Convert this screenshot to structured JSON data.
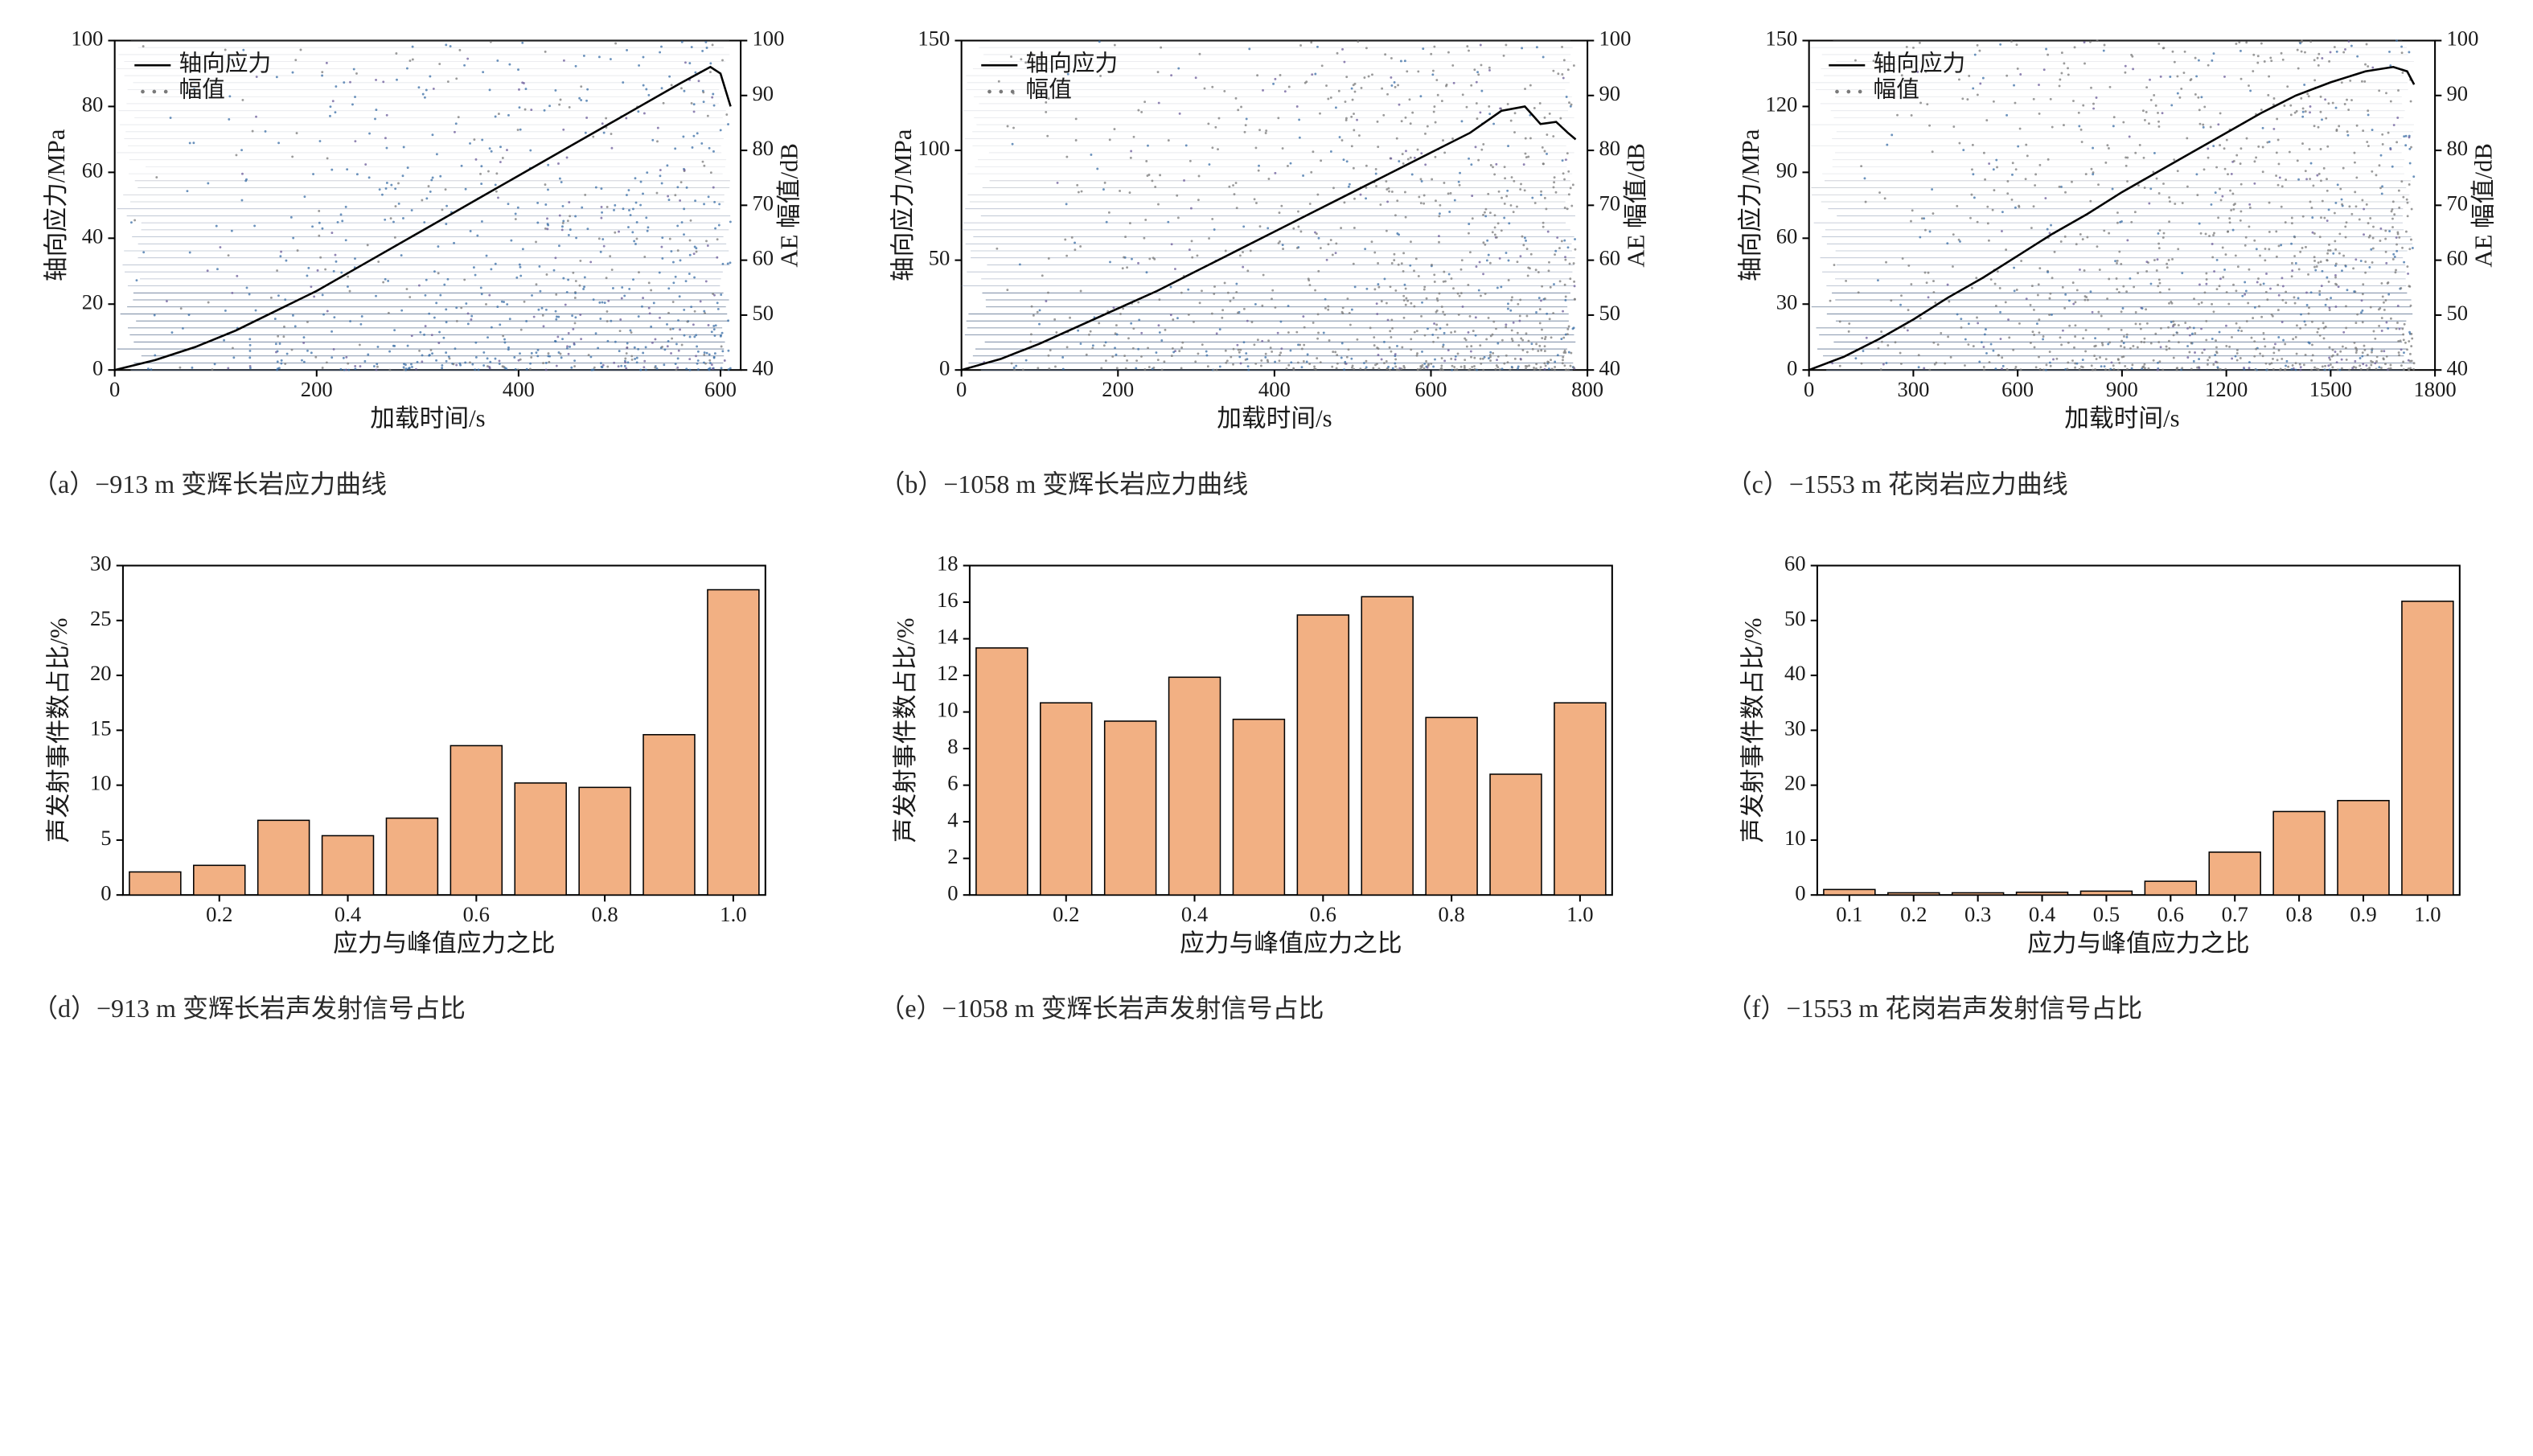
{
  "colors": {
    "bg": "#ffffff",
    "axis": "#000000",
    "text": "#1a1a1a",
    "bar_fill": "#f2b083",
    "bar_stroke": "#000000",
    "stress_line": "#000000",
    "hstripe": "#556b8a",
    "scatter_blue": "#3a6ea5",
    "scatter_gray": "#7a7a7a",
    "scatter_purple": "#6b5b9a"
  },
  "typography": {
    "tick_pt": 26,
    "axis_title_pt": 30,
    "caption_pt": 32,
    "legend_pt": 28
  },
  "top_common": {
    "y1_label": "轴向应力/MPa",
    "y2_label": "AE 幅值/dB",
    "x_label": "加载时间/s",
    "legend_line": "轴向应力",
    "legend_pts": "幅值",
    "y2_lim": [
      40,
      100
    ],
    "y2_ticks": [
      40,
      50,
      60,
      70,
      80,
      90,
      100
    ]
  },
  "top_a": {
    "caption": "（a）−913 m 变辉长岩应力曲线",
    "xlim": [
      0,
      620
    ],
    "xticks": [
      0,
      200,
      400,
      600
    ],
    "y1_lim": [
      0,
      100
    ],
    "y1_ticks": [
      0,
      20,
      40,
      60,
      80,
      100
    ],
    "stress_curve": [
      [
        0,
        0
      ],
      [
        40,
        3
      ],
      [
        80,
        7
      ],
      [
        120,
        12
      ],
      [
        160,
        18
      ],
      [
        200,
        24
      ],
      [
        240,
        31
      ],
      [
        280,
        38
      ],
      [
        320,
        45
      ],
      [
        360,
        52
      ],
      [
        400,
        59
      ],
      [
        440,
        66
      ],
      [
        480,
        73
      ],
      [
        520,
        80
      ],
      [
        560,
        87
      ],
      [
        590,
        92
      ],
      [
        600,
        90
      ],
      [
        610,
        80
      ]
    ],
    "scatter_n": 900,
    "scatter_color_mix": [
      0.6,
      0.25,
      0.15
    ]
  },
  "top_b": {
    "caption": "（b）−1058  m 变辉长岩应力曲线",
    "xlim": [
      0,
      800
    ],
    "xticks": [
      0,
      200,
      400,
      600,
      800
    ],
    "y1_lim": [
      0,
      150
    ],
    "y1_ticks": [
      0,
      50,
      100,
      150
    ],
    "stress_curve": [
      [
        0,
        0
      ],
      [
        50,
        5
      ],
      [
        100,
        12
      ],
      [
        150,
        20
      ],
      [
        200,
        28
      ],
      [
        250,
        36
      ],
      [
        300,
        45
      ],
      [
        350,
        54
      ],
      [
        400,
        63
      ],
      [
        450,
        72
      ],
      [
        500,
        81
      ],
      [
        550,
        90
      ],
      [
        600,
        99
      ],
      [
        650,
        108
      ],
      [
        690,
        118
      ],
      [
        720,
        120
      ],
      [
        740,
        112
      ],
      [
        760,
        113
      ],
      [
        775,
        108
      ],
      [
        785,
        105
      ]
    ],
    "scatter_n": 1100,
    "scatter_color_mix": [
      0.2,
      0.7,
      0.1
    ]
  },
  "top_c": {
    "caption": "（c）−1553 m 花岗岩应力曲线",
    "xlim": [
      0,
      1800
    ],
    "xticks": [
      0,
      300,
      600,
      900,
      1200,
      1500,
      1800
    ],
    "y1_lim": [
      0,
      150
    ],
    "y1_ticks": [
      0,
      30,
      60,
      90,
      120,
      150
    ],
    "stress_curve": [
      [
        0,
        0
      ],
      [
        100,
        6
      ],
      [
        200,
        14
      ],
      [
        300,
        23
      ],
      [
        400,
        33
      ],
      [
        500,
        42
      ],
      [
        600,
        52
      ],
      [
        700,
        62
      ],
      [
        800,
        71
      ],
      [
        900,
        81
      ],
      [
        1000,
        90
      ],
      [
        1100,
        99
      ],
      [
        1200,
        108
      ],
      [
        1300,
        117
      ],
      [
        1400,
        125
      ],
      [
        1500,
        131
      ],
      [
        1600,
        136
      ],
      [
        1680,
        138
      ],
      [
        1720,
        136
      ],
      [
        1740,
        130
      ]
    ],
    "scatter_n": 1300,
    "scatter_color_mix": [
      0.15,
      0.75,
      0.1
    ]
  },
  "bottom_common": {
    "y_label": "声发射事件数占比/%",
    "x_label": "应力与峰值应力之比",
    "categories": [
      0.1,
      0.2,
      0.3,
      0.4,
      0.5,
      0.6,
      0.7,
      0.8,
      0.9,
      1.0
    ],
    "bar_width": 0.8
  },
  "bottom_d": {
    "caption": "（d）−913 m 变辉长岩声发射信号占比",
    "ylim": [
      0,
      30
    ],
    "yticks": [
      0,
      5,
      10,
      15,
      20,
      25,
      30
    ],
    "values": [
      2.1,
      2.7,
      6.8,
      5.4,
      7.0,
      13.6,
      10.2,
      9.8,
      14.6,
      27.8
    ],
    "xticks_show": [
      0.2,
      0.4,
      0.6,
      0.8,
      1.0
    ]
  },
  "bottom_e": {
    "caption": "（e）−1058  m 变辉长岩声发射信号占比",
    "ylim": [
      0,
      18
    ],
    "yticks": [
      0,
      2,
      4,
      6,
      8,
      10,
      12,
      14,
      16,
      18
    ],
    "values": [
      13.5,
      10.5,
      9.5,
      11.9,
      9.6,
      15.3,
      16.3,
      9.7,
      6.6,
      10.5
    ],
    "xticks_show": [
      0.2,
      0.4,
      0.6,
      0.8,
      1.0
    ]
  },
  "bottom_f": {
    "caption": "（f）−1553 m 花岗岩声发射信号占比",
    "ylim": [
      0,
      60
    ],
    "yticks": [
      0,
      10,
      20,
      30,
      40,
      50,
      60
    ],
    "values": [
      1.0,
      0.4,
      0.4,
      0.5,
      0.7,
      2.5,
      7.8,
      15.2,
      17.2,
      53.5
    ],
    "xticks_show": [
      0.1,
      0.2,
      0.3,
      0.4,
      0.5,
      0.6,
      0.7,
      0.8,
      0.9,
      1.0
    ]
  }
}
